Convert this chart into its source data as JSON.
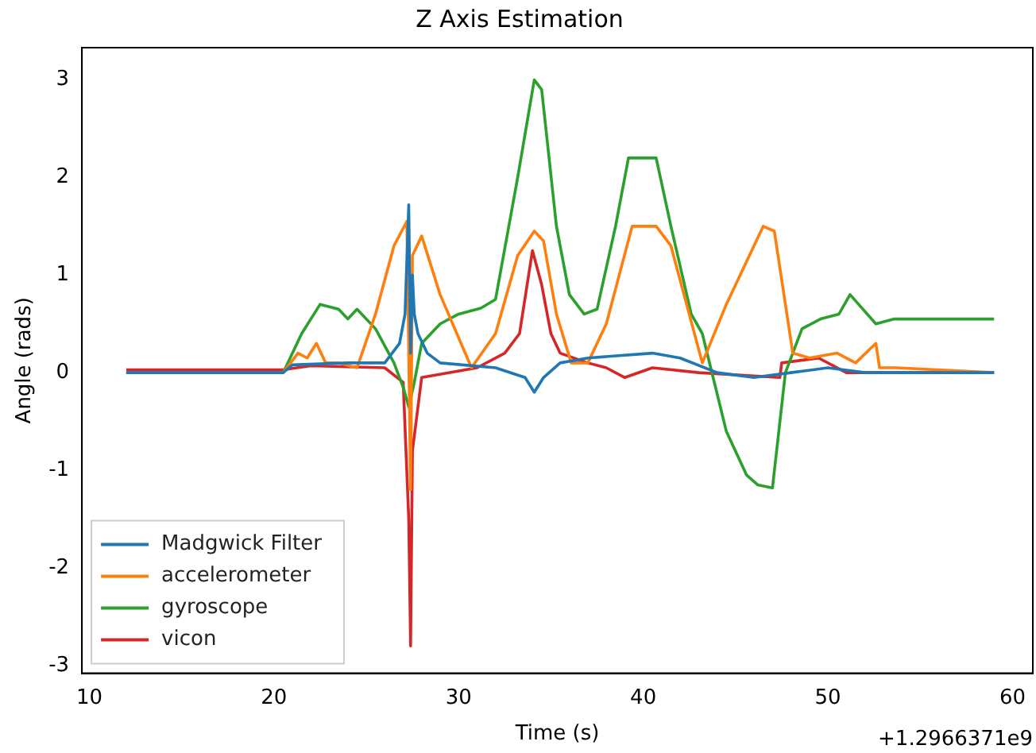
{
  "chart_data": {
    "type": "line",
    "title": "Z Axis Estimation",
    "xlabel": "Time (s)",
    "ylabel": "Angle (rads)",
    "annotations": [
      "+1.2966371e9"
    ],
    "xlim": [
      9.6,
      61.1
    ],
    "ylim": [
      -3.08,
      3.33
    ],
    "xticks": [
      10,
      20,
      30,
      40,
      50,
      60
    ],
    "yticks": [
      -3,
      -2,
      -1,
      0,
      1,
      2,
      3
    ],
    "grid": false,
    "legend": "bottom left",
    "marker": "none",
    "line_style": "solid",
    "series": [
      {
        "name": "Madgwick Filter",
        "color": "#1f77b4",
        "x": [
          12,
          20.5,
          21,
          24,
          26,
          26.8,
          27.1,
          27.3,
          27.4,
          27.5,
          27.6,
          27.8,
          28.3,
          29,
          32,
          33.6,
          34.1,
          34.6,
          35.5,
          37,
          40.5,
          42,
          44,
          46,
          48,
          50,
          52,
          59
        ],
        "values": [
          0,
          0,
          0.08,
          0.1,
          0.1,
          0.3,
          0.6,
          1.72,
          0.2,
          1.0,
          0.6,
          0.4,
          0.2,
          0.1,
          0.05,
          -0.05,
          -0.2,
          -0.05,
          0.1,
          0.15,
          0.2,
          0.15,
          0,
          -0.05,
          0,
          0.05,
          0,
          0
        ]
      },
      {
        "name": "accelerometer",
        "color": "#ff7f0e",
        "x": [
          12,
          20.5,
          21.3,
          21.8,
          22.3,
          22.8,
          23.5,
          24.5,
          25.5,
          26.5,
          27.2,
          27.3,
          27.4,
          27.5,
          28,
          29,
          30.7,
          32,
          33.2,
          34.1,
          34.6,
          35.3,
          36.1,
          37,
          38,
          39.4,
          40.7,
          41.5,
          43.2,
          44.5,
          46.5,
          47.1,
          48.1,
          49,
          50.5,
          51.5,
          52.6,
          52.8,
          53.7,
          59
        ],
        "values": [
          0,
          0,
          0.2,
          0.15,
          0.3,
          0.1,
          0.1,
          0.05,
          0.6,
          1.3,
          1.55,
          0.2,
          -1.2,
          1.2,
          1.4,
          0.8,
          0.05,
          0.4,
          1.2,
          1.45,
          1.35,
          0.6,
          0.1,
          0.1,
          0.5,
          1.5,
          1.5,
          1.3,
          0.1,
          0.7,
          1.5,
          1.45,
          0.2,
          0.15,
          0.2,
          0.1,
          0.3,
          0.05,
          0.05,
          0
        ]
      },
      {
        "name": "gyroscope",
        "color": "#2ca02c",
        "x": [
          12,
          20.5,
          21.5,
          22.5,
          23.5,
          24,
          24.5,
          25.5,
          26.5,
          27,
          27.3,
          27.6,
          28,
          29,
          30,
          31.2,
          32,
          33.2,
          34.1,
          34.5,
          35.3,
          36,
          36.8,
          37.5,
          38.5,
          39.2,
          40.7,
          41.5,
          42.6,
          43.2,
          44.5,
          45.6,
          46.2,
          47,
          47.7,
          48.6,
          49.6,
          50.6,
          51.2,
          52.6,
          53.6,
          59
        ],
        "values": [
          0,
          0,
          0.4,
          0.7,
          0.65,
          0.55,
          0.65,
          0.45,
          0.1,
          -0.15,
          -0.35,
          -0.1,
          0.3,
          0.5,
          0.6,
          0.66,
          0.75,
          2.0,
          3.0,
          2.9,
          1.5,
          0.8,
          0.6,
          0.65,
          1.5,
          2.2,
          2.2,
          1.5,
          0.6,
          0.4,
          -0.6,
          -1.05,
          -1.15,
          -1.18,
          0,
          0.45,
          0.55,
          0.6,
          0.8,
          0.5,
          0.55,
          0.55
        ]
      },
      {
        "name": "vicon",
        "color": "#d62728",
        "x": [
          12,
          20.5,
          22,
          26,
          27,
          27.3,
          27.4,
          27.5,
          28,
          31,
          32.5,
          33.3,
          34,
          34.5,
          35,
          35.5,
          37,
          38,
          39,
          40.5,
          43,
          47.4,
          47.5,
          49.5,
          51,
          59
        ],
        "values": [
          0.03,
          0.03,
          0.07,
          0.05,
          -0.1,
          -1.5,
          -2.8,
          -0.8,
          -0.05,
          0.05,
          0.2,
          0.4,
          1.25,
          0.9,
          0.4,
          0.2,
          0.1,
          0.05,
          -0.05,
          0.05,
          0,
          -0.05,
          0.1,
          0.15,
          0,
          0
        ]
      }
    ]
  }
}
